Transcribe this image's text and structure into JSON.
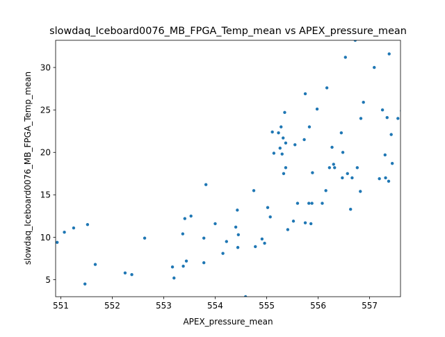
{
  "chart_data": {
    "type": "scatter",
    "title": "slowdaq_Iceboard0076_MB_FPGA_Temp_mean vs APEX_pressure_mean",
    "xlabel": "APEX_pressure_mean",
    "ylabel": "slowdaq_Iceboard0076_MB_FPGA_Temp_mean",
    "xlim": [
      550.9,
      557.6
    ],
    "ylim": [
      3.0,
      33.2
    ],
    "xticks": [
      551,
      552,
      553,
      554,
      555,
      556,
      557
    ],
    "yticks": [
      5,
      10,
      15,
      20,
      25,
      30
    ],
    "grid": false,
    "marker_color": "#1f77b4",
    "series": [
      {
        "x": [
          550.93,
          551.07,
          551.25,
          551.47,
          551.52,
          551.67,
          552.25,
          552.38,
          552.63,
          553.17,
          553.2,
          553.37,
          553.38,
          553.41,
          553.44,
          553.53,
          553.78,
          553.78,
          553.82,
          554.0,
          554.15,
          554.22,
          554.4,
          554.43,
          554.44,
          554.45,
          554.59,
          554.75,
          554.78,
          554.91,
          554.96,
          555.02,
          555.07,
          555.11,
          555.14,
          555.23,
          555.26,
          555.28,
          555.3,
          555.32,
          555.33,
          555.35,
          555.37,
          555.37,
          555.41,
          555.52,
          555.55,
          555.6,
          555.73,
          555.75,
          555.75,
          555.82,
          555.83,
          555.86,
          555.88,
          555.89,
          555.98,
          556.08,
          556.15,
          556.17,
          556.22,
          556.27,
          556.3,
          556.32,
          556.45,
          556.47,
          556.48,
          556.53,
          556.57,
          556.63,
          556.66,
          556.72,
          556.76,
          556.82,
          556.83,
          556.88,
          557.09,
          557.19,
          557.25,
          557.3,
          557.31,
          557.34,
          557.37,
          557.38,
          557.42,
          557.44,
          557.55,
          557.62
        ],
        "y": [
          9.4,
          10.6,
          11.1,
          4.5,
          11.5,
          6.8,
          5.8,
          5.6,
          9.9,
          6.5,
          5.2,
          10.4,
          6.6,
          12.2,
          7.2,
          12.5,
          9.9,
          7.0,
          16.2,
          11.6,
          8.1,
          9.5,
          11.2,
          13.2,
          8.8,
          10.3,
          3.0,
          15.5,
          8.9,
          9.8,
          9.3,
          13.5,
          12.4,
          22.4,
          19.9,
          22.3,
          20.5,
          23.0,
          19.8,
          21.7,
          17.5,
          24.7,
          21.1,
          18.2,
          10.9,
          11.9,
          20.9,
          14.0,
          21.5,
          11.7,
          26.9,
          14.0,
          23.0,
          11.6,
          14.0,
          17.6,
          25.1,
          14.0,
          15.5,
          27.6,
          18.2,
          20.6,
          18.6,
          18.2,
          22.3,
          17.0,
          20.0,
          31.2,
          17.5,
          13.3,
          17.0,
          33.2,
          18.2,
          15.4,
          24.0,
          25.9,
          30.0,
          16.9,
          25.0,
          19.7,
          17.0,
          24.1,
          16.6,
          31.6,
          22.1,
          18.7,
          24.0,
          24.9
        ]
      }
    ]
  }
}
